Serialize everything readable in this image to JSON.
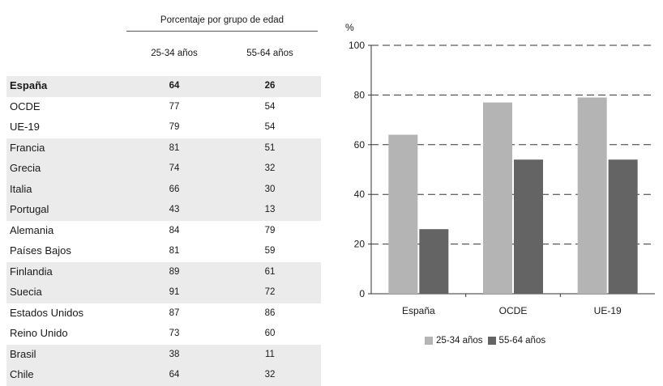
{
  "table": {
    "group_header": "Porcentaje por grupo de edad",
    "col_a": "25-34 años",
    "col_b": "55-64 años",
    "rows": [
      {
        "country": "España",
        "a": "64",
        "b": "26",
        "shaded": true,
        "bold": true
      },
      {
        "country": "OCDE",
        "a": "77",
        "b": "54",
        "shaded": false,
        "bold": false
      },
      {
        "country": "UE-19",
        "a": "79",
        "b": "54",
        "shaded": false,
        "bold": false
      },
      {
        "country": "Francia",
        "a": "81",
        "b": "51",
        "shaded": true,
        "bold": false
      },
      {
        "country": "Grecia",
        "a": "74",
        "b": "32",
        "shaded": true,
        "bold": false
      },
      {
        "country": "Italia",
        "a": "66",
        "b": "30",
        "shaded": true,
        "bold": false
      },
      {
        "country": "Portugal",
        "a": "43",
        "b": "13",
        "shaded": true,
        "bold": false
      },
      {
        "country": "Alemania",
        "a": "84",
        "b": "79",
        "shaded": false,
        "bold": false
      },
      {
        "country": "Países Bajos",
        "a": "81",
        "b": "59",
        "shaded": false,
        "bold": false
      },
      {
        "country": "Finlandia",
        "a": "89",
        "b": "61",
        "shaded": true,
        "bold": false
      },
      {
        "country": "Suecia",
        "a": "91",
        "b": "72",
        "shaded": true,
        "bold": false
      },
      {
        "country": "Estados Unidos",
        "a": "87",
        "b": "86",
        "shaded": false,
        "bold": false
      },
      {
        "country": "Reino Unido",
        "a": "73",
        "b": "60",
        "shaded": false,
        "bold": false
      },
      {
        "country": "Brasil",
        "a": "38",
        "b": "11",
        "shaded": true,
        "bold": false
      },
      {
        "country": "Chile",
        "a": "64",
        "b": "32",
        "shaded": true,
        "bold": false
      }
    ]
  },
  "chart_data": {
    "type": "bar",
    "ylabel": "%",
    "ylim": [
      0,
      100
    ],
    "yticks": [
      0,
      20,
      40,
      60,
      80,
      100
    ],
    "grid": "dashed horizontal",
    "legend_position": "bottom",
    "categories": [
      "España",
      "OCDE",
      "UE-19"
    ],
    "series": [
      {
        "name": "25-34 años",
        "values": [
          64,
          77,
          79
        ],
        "color": "#b4b4b4"
      },
      {
        "name": "55-64 años",
        "values": [
          26,
          54,
          54
        ],
        "color": "#646464"
      }
    ]
  }
}
